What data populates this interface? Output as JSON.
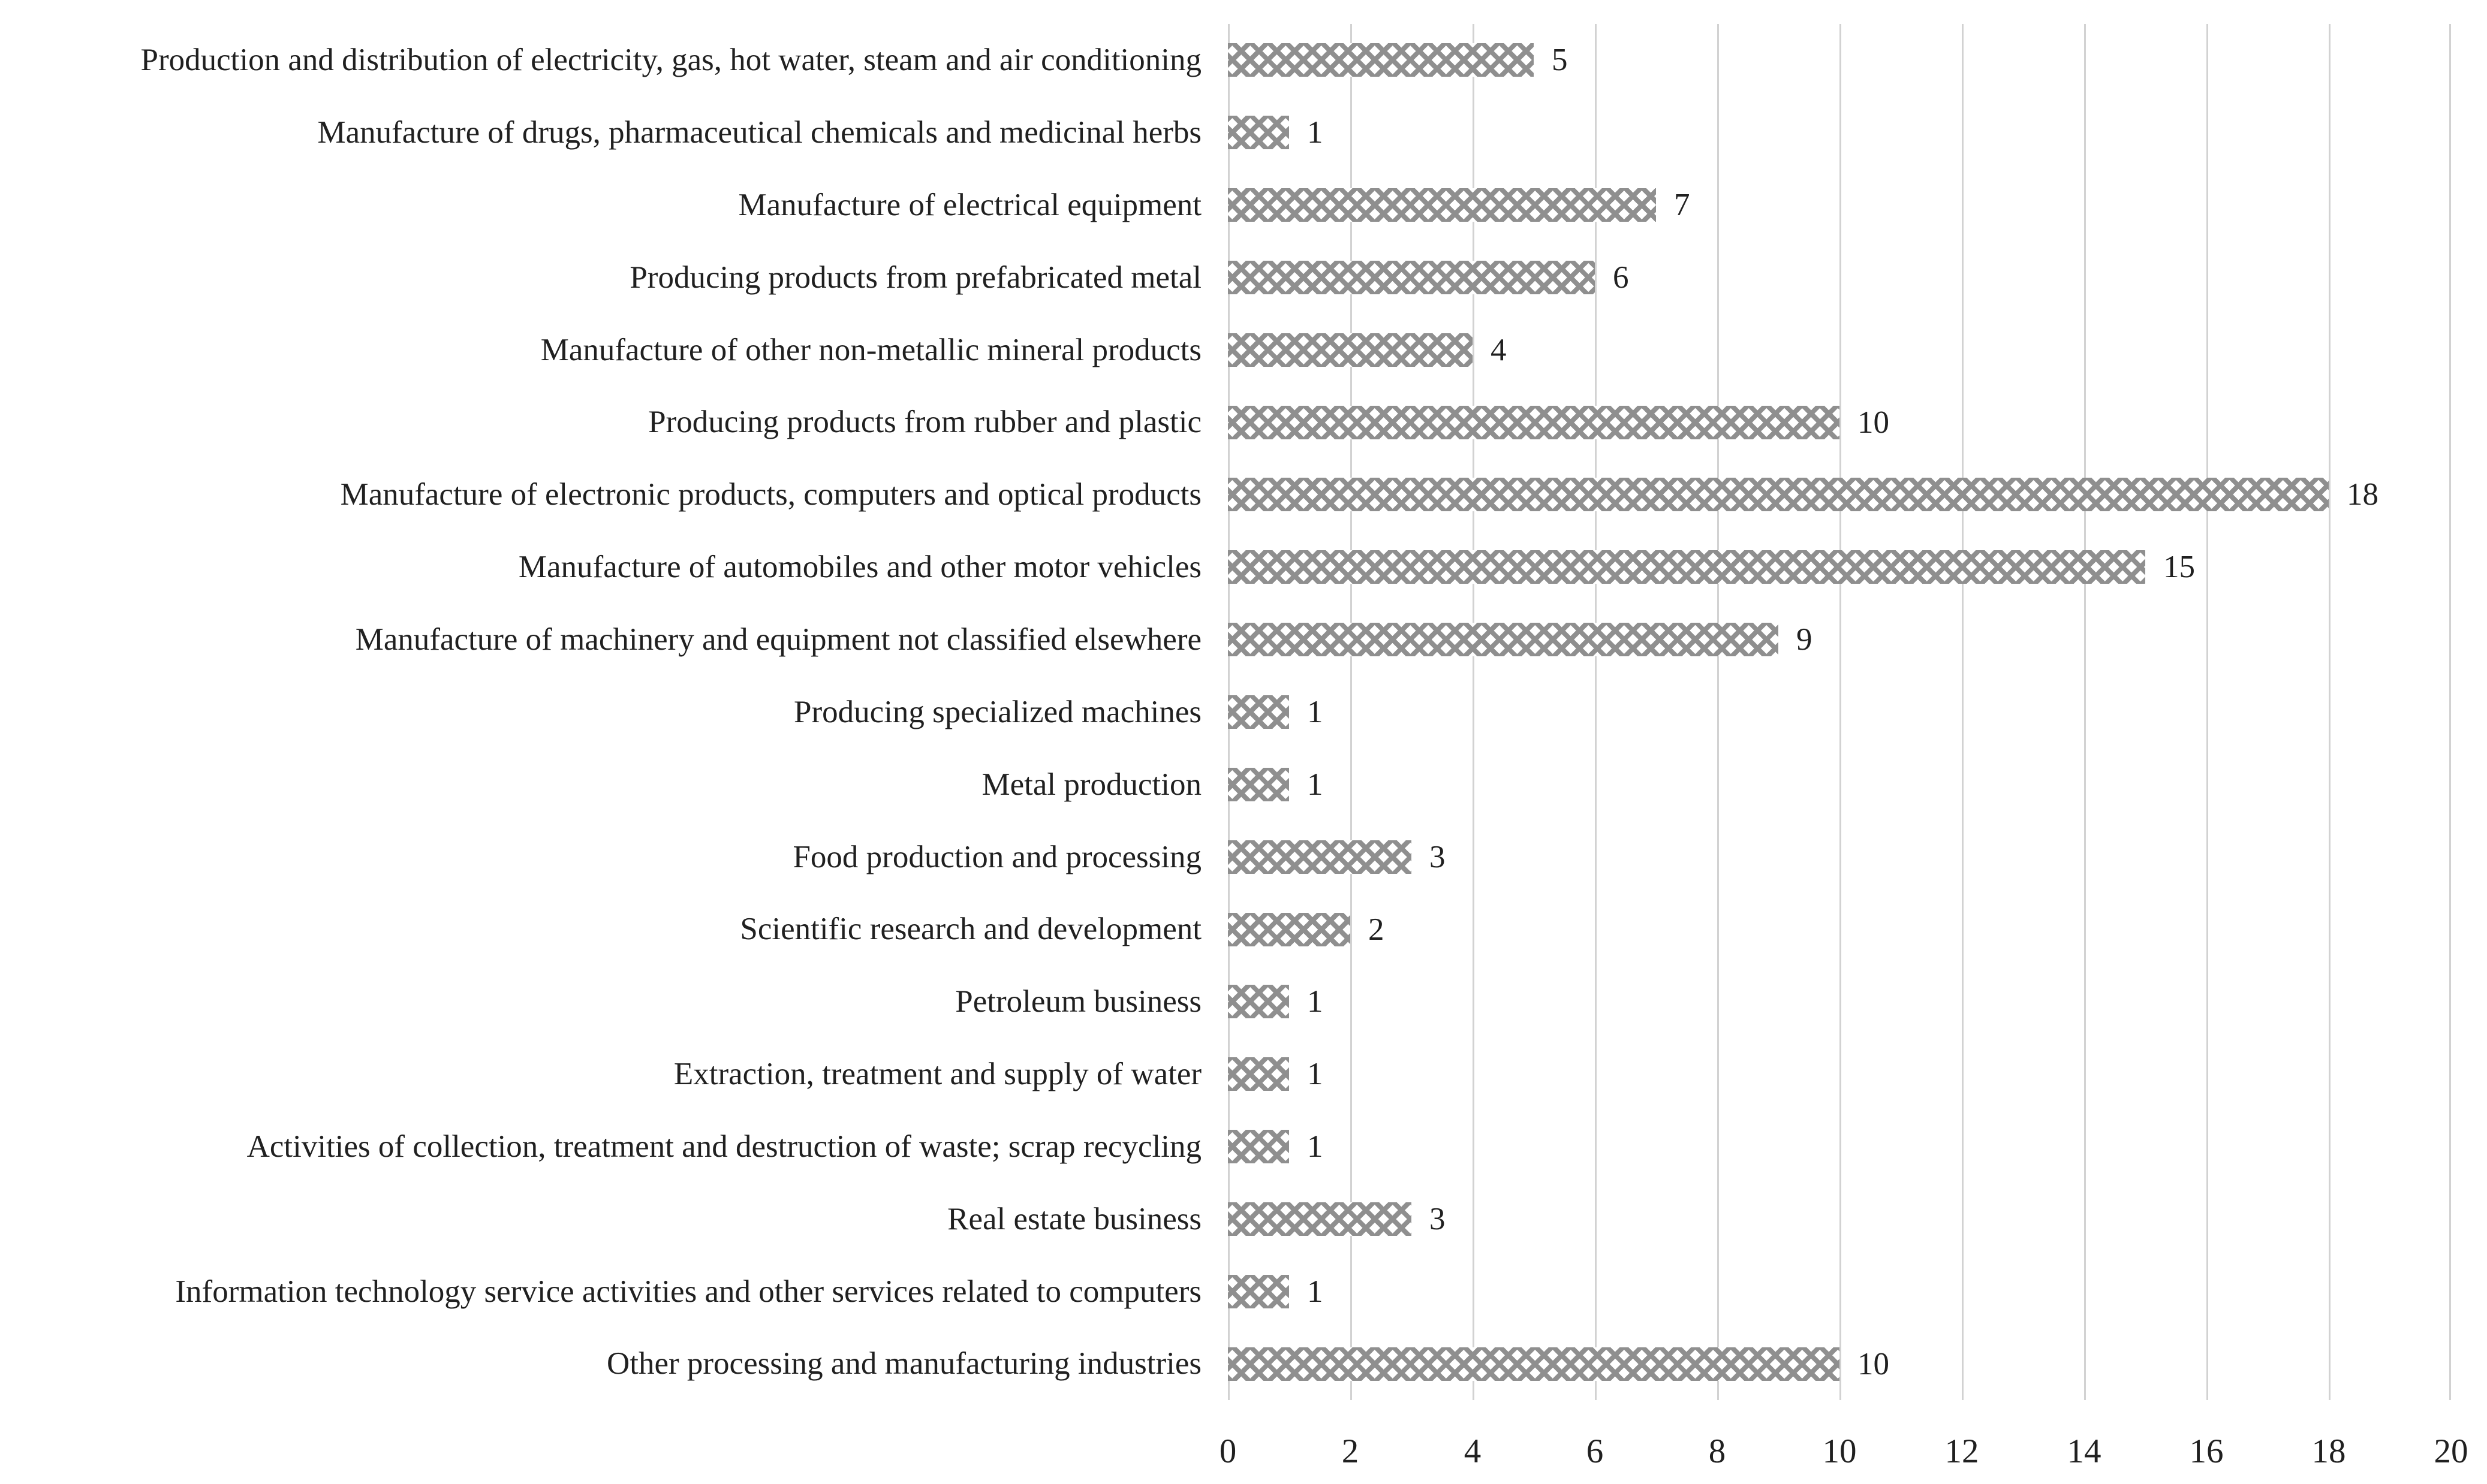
{
  "chart_data": {
    "type": "bar",
    "orientation": "horizontal",
    "title": "",
    "xlabel": "",
    "ylabel": "",
    "xlim": [
      0,
      20
    ],
    "grid": "vertical",
    "legend": "none",
    "x_ticks": [
      0,
      2,
      4,
      6,
      8,
      10,
      12,
      14,
      16,
      18,
      20
    ],
    "categories": [
      "Production and distribution of electricity, gas, hot water, steam and air conditioning",
      "Manufacture of drugs, pharmaceutical chemicals and medicinal herbs",
      "Manufacture of electrical equipment",
      "Producing products from prefabricated metal",
      "Manufacture of other non-metallic mineral products",
      "Producing products from rubber and plastic",
      "Manufacture of electronic products, computers and optical products",
      "Manufacture of automobiles and other motor vehicles",
      "Manufacture of machinery and equipment not classified elsewhere",
      "Producing specialized machines",
      "Metal production",
      "Food production and processing",
      "Scientific research and development",
      "Petroleum business",
      "Extraction, treatment and supply of water",
      "Activities of collection, treatment and destruction of waste; scrap recycling",
      "Real estate business",
      "Information technology service activities and other services related to computers",
      "Other processing and manufacturing industries"
    ],
    "values": [
      5,
      1,
      7,
      6,
      4,
      10,
      18,
      15,
      9,
      1,
      1,
      3,
      2,
      1,
      1,
      1,
      3,
      1,
      10
    ],
    "colors": {
      "bar_pattern_foreground": "#8f8f8f",
      "bar_pattern_background": "#ffffff",
      "gridline": "#d2d2d2",
      "text": "#202020",
      "background": "#ffffff"
    },
    "bar_fill_style": "diagonal-crosshatch-pattern"
  }
}
